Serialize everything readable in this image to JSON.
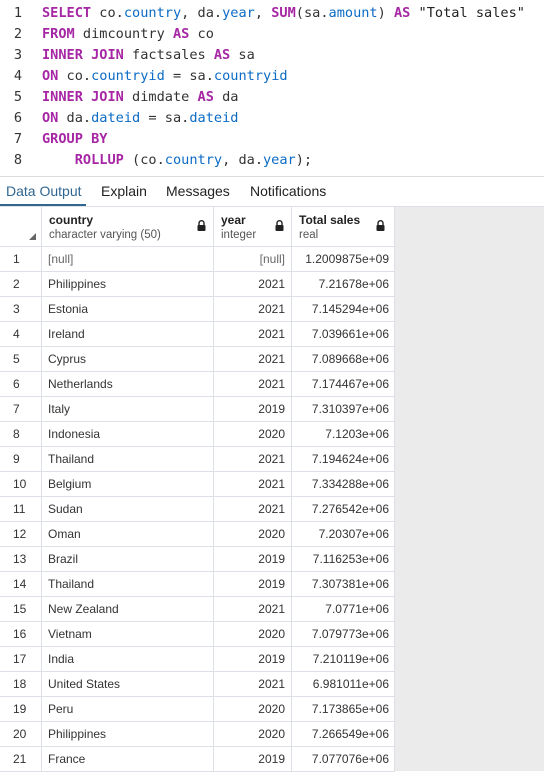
{
  "editor": {
    "lines": [
      {
        "num": "1",
        "tokens": [
          [
            "kw",
            "SELECT"
          ],
          [
            "t",
            " co."
          ],
          [
            "ident",
            "country"
          ],
          [
            "t",
            ", da."
          ],
          [
            "ident",
            "year"
          ],
          [
            "t",
            ", "
          ],
          [
            "kw",
            "SUM"
          ],
          [
            "t",
            "(sa."
          ],
          [
            "ident",
            "amount"
          ],
          [
            "t",
            ") "
          ],
          [
            "kw",
            "AS"
          ],
          [
            "str",
            " \"Total sales\""
          ]
        ]
      },
      {
        "num": "2",
        "tokens": [
          [
            "kw",
            "FROM"
          ],
          [
            "t",
            " dimcountry "
          ],
          [
            "kw",
            "AS"
          ],
          [
            "t",
            " co"
          ]
        ]
      },
      {
        "num": "3",
        "tokens": [
          [
            "kw",
            "INNER JOIN"
          ],
          [
            "t",
            " factsales "
          ],
          [
            "kw",
            "AS"
          ],
          [
            "t",
            " sa"
          ]
        ]
      },
      {
        "num": "4",
        "tokens": [
          [
            "kw",
            "ON"
          ],
          [
            "t",
            " co."
          ],
          [
            "ident",
            "countryid"
          ],
          [
            "t",
            " = sa."
          ],
          [
            "ident",
            "countryid"
          ]
        ]
      },
      {
        "num": "5",
        "tokens": [
          [
            "kw",
            "INNER JOIN"
          ],
          [
            "t",
            " dimdate "
          ],
          [
            "kw",
            "AS"
          ],
          [
            "t",
            " da"
          ]
        ]
      },
      {
        "num": "6",
        "tokens": [
          [
            "kw",
            "ON"
          ],
          [
            "t",
            " da."
          ],
          [
            "ident",
            "dateid"
          ],
          [
            "t",
            " = sa."
          ],
          [
            "ident",
            "dateid"
          ]
        ]
      },
      {
        "num": "7",
        "tokens": [
          [
            "kw",
            "GROUP BY"
          ]
        ]
      },
      {
        "num": "8",
        "tokens": [
          [
            "t",
            "    "
          ],
          [
            "kw",
            "ROLLUP"
          ],
          [
            "t",
            " (co."
          ],
          [
            "ident",
            "country"
          ],
          [
            "t",
            ", da."
          ],
          [
            "ident",
            "year"
          ],
          [
            "t",
            ");"
          ]
        ]
      }
    ]
  },
  "tabs": {
    "data_output": "Data Output",
    "explain": "Explain",
    "messages": "Messages",
    "notifications": "Notifications"
  },
  "grid": {
    "columns": [
      {
        "name": "country",
        "type": "character varying (50)"
      },
      {
        "name": "year",
        "type": "integer"
      },
      {
        "name": "Total sales",
        "type": "real"
      }
    ],
    "rows": [
      [
        "1",
        "[null]",
        "[null]",
        "1.2009875e+09"
      ],
      [
        "2",
        "Philippines",
        "2021",
        "7.21678e+06"
      ],
      [
        "3",
        "Estonia",
        "2021",
        "7.145294e+06"
      ],
      [
        "4",
        "Ireland",
        "2021",
        "7.039661e+06"
      ],
      [
        "5",
        "Cyprus",
        "2021",
        "7.089668e+06"
      ],
      [
        "6",
        "Netherlands",
        "2021",
        "7.174467e+06"
      ],
      [
        "7",
        "Italy",
        "2019",
        "7.310397e+06"
      ],
      [
        "8",
        "Indonesia",
        "2020",
        "7.1203e+06"
      ],
      [
        "9",
        "Thailand",
        "2021",
        "7.194624e+06"
      ],
      [
        "10",
        "Belgium",
        "2021",
        "7.334288e+06"
      ],
      [
        "11",
        "Sudan",
        "2021",
        "7.276542e+06"
      ],
      [
        "12",
        "Oman",
        "2020",
        "7.20307e+06"
      ],
      [
        "13",
        "Brazil",
        "2019",
        "7.116253e+06"
      ],
      [
        "14",
        "Thailand",
        "2019",
        "7.307381e+06"
      ],
      [
        "15",
        "New Zealand",
        "2021",
        "7.0771e+06"
      ],
      [
        "16",
        "Vietnam",
        "2020",
        "7.079773e+06"
      ],
      [
        "17",
        "India",
        "2019",
        "7.210119e+06"
      ],
      [
        "18",
        "United States",
        "2021",
        "6.981011e+06"
      ],
      [
        "19",
        "Peru",
        "2020",
        "7.173865e+06"
      ],
      [
        "20",
        "Philippines",
        "2020",
        "7.266549e+06"
      ],
      [
        "21",
        "France",
        "2019",
        "7.077076e+06"
      ]
    ]
  }
}
